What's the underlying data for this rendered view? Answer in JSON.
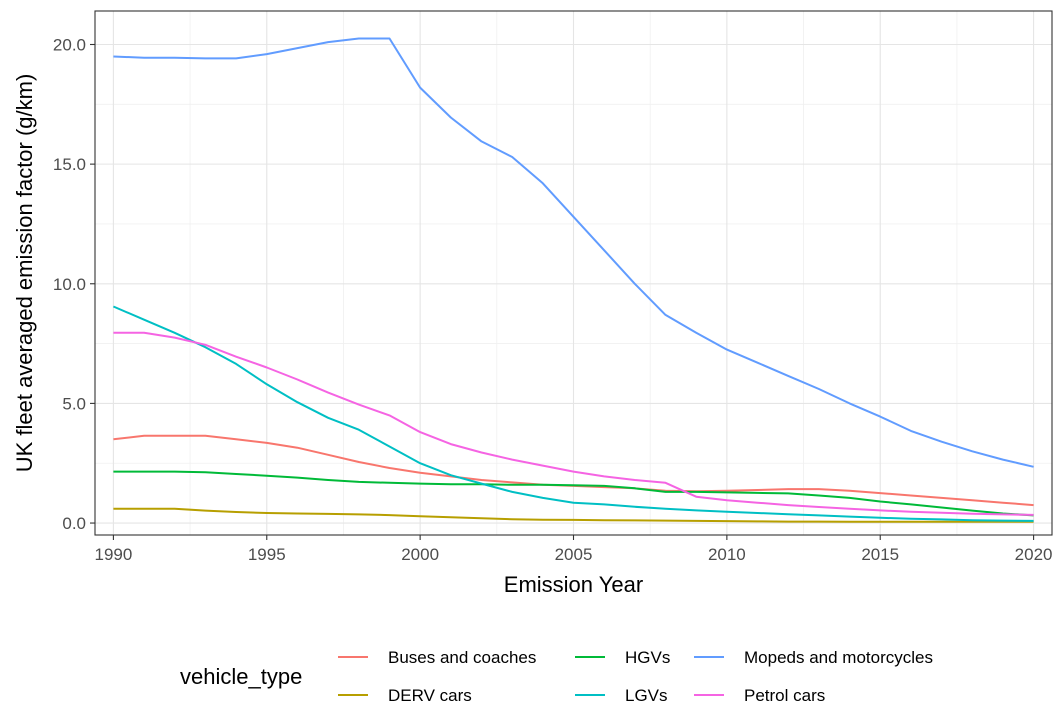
{
  "chart_data": {
    "type": "line",
    "xlabel": "Emission Year",
    "ylabel": "UK fleet averaged emission factor (g/km)",
    "xlim": [
      1989.4,
      2020.6
    ],
    "ylim": [
      -0.5,
      21.4
    ],
    "x_ticks": [
      1990,
      1995,
      2000,
      2005,
      2010,
      2015,
      2020
    ],
    "x_tick_labels": [
      "1990",
      "1995",
      "2000",
      "2005",
      "2010",
      "2015",
      "2020"
    ],
    "y_ticks": [
      0,
      5,
      10,
      15,
      20
    ],
    "y_tick_labels": [
      "0.0",
      "5.0",
      "10.0",
      "15.0",
      "20.0"
    ],
    "grid": true,
    "legend": {
      "title": "vehicle_type",
      "position": "bottom"
    },
    "x": [
      1990,
      1991,
      1992,
      1993,
      1994,
      1995,
      1996,
      1997,
      1998,
      1999,
      2000,
      2001,
      2002,
      2003,
      2004,
      2005,
      2006,
      2007,
      2008,
      2009,
      2010,
      2011,
      2012,
      2013,
      2014,
      2015,
      2016,
      2017,
      2018,
      2019,
      2020
    ],
    "series": [
      {
        "name": "Buses and coaches",
        "color": "#F8766D",
        "values": [
          3.5,
          3.65,
          3.65,
          3.65,
          3.5,
          3.35,
          3.15,
          2.85,
          2.55,
          2.3,
          2.1,
          1.95,
          1.8,
          1.7,
          1.6,
          1.55,
          1.5,
          1.45,
          1.35,
          1.33,
          1.35,
          1.38,
          1.42,
          1.42,
          1.35,
          1.25,
          1.15,
          1.05,
          0.95,
          0.85,
          0.75
        ]
      },
      {
        "name": "DERV cars",
        "color": "#B79F00",
        "values": [
          0.6,
          0.6,
          0.6,
          0.52,
          0.46,
          0.42,
          0.4,
          0.38,
          0.36,
          0.33,
          0.28,
          0.24,
          0.2,
          0.16,
          0.14,
          0.13,
          0.12,
          0.11,
          0.1,
          0.09,
          0.08,
          0.07,
          0.06,
          0.06,
          0.05,
          0.05,
          0.05,
          0.05,
          0.05,
          0.05,
          0.05
        ]
      },
      {
        "name": "HGVs",
        "color": "#00BA38",
        "values": [
          2.15,
          2.15,
          2.15,
          2.12,
          2.05,
          1.98,
          1.9,
          1.8,
          1.72,
          1.68,
          1.65,
          1.62,
          1.62,
          1.6,
          1.6,
          1.58,
          1.55,
          1.45,
          1.3,
          1.3,
          1.28,
          1.26,
          1.24,
          1.15,
          1.05,
          0.9,
          0.78,
          0.65,
          0.52,
          0.4,
          0.32
        ]
      },
      {
        "name": "LGVs",
        "color": "#00BFC4",
        "values": [
          9.05,
          8.5,
          7.95,
          7.35,
          6.65,
          5.8,
          5.05,
          4.4,
          3.9,
          3.2,
          2.5,
          2.0,
          1.65,
          1.3,
          1.05,
          0.85,
          0.78,
          0.68,
          0.6,
          0.53,
          0.47,
          0.42,
          0.37,
          0.32,
          0.27,
          0.22,
          0.18,
          0.15,
          0.12,
          0.1,
          0.09
        ]
      },
      {
        "name": "Mopeds and motorcycles",
        "color": "#619CFF",
        "values": [
          19.5,
          19.45,
          19.45,
          19.42,
          19.42,
          19.6,
          19.85,
          20.1,
          20.25,
          20.25,
          18.2,
          16.95,
          15.95,
          15.3,
          14.2,
          12.8,
          11.4,
          10.0,
          8.7,
          7.95,
          7.25,
          6.7,
          6.15,
          5.6,
          5.0,
          4.45,
          3.85,
          3.4,
          3.0,
          2.65,
          2.35
        ]
      },
      {
        "name": "Petrol cars",
        "color": "#F564E3",
        "values": [
          7.95,
          7.95,
          7.75,
          7.45,
          6.95,
          6.5,
          6.0,
          5.45,
          4.95,
          4.5,
          3.8,
          3.3,
          2.95,
          2.65,
          2.4,
          2.15,
          1.95,
          1.8,
          1.68,
          1.1,
          0.95,
          0.85,
          0.75,
          0.67,
          0.6,
          0.53,
          0.47,
          0.43,
          0.39,
          0.36,
          0.34
        ]
      }
    ]
  }
}
